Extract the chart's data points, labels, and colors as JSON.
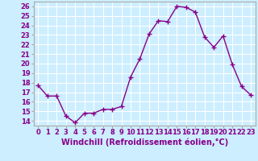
{
  "x": [
    0,
    1,
    2,
    3,
    4,
    5,
    6,
    7,
    8,
    9,
    10,
    11,
    12,
    13,
    14,
    15,
    16,
    17,
    18,
    19,
    20,
    21,
    22,
    23
  ],
  "y": [
    17.7,
    16.6,
    16.6,
    14.5,
    13.8,
    14.8,
    14.8,
    15.2,
    15.2,
    15.5,
    18.6,
    20.5,
    23.1,
    24.5,
    24.4,
    26.0,
    25.9,
    25.4,
    22.8,
    21.7,
    22.9,
    19.9,
    17.6,
    16.7
  ],
  "line_color": "#880088",
  "marker": "+",
  "marker_size": 4,
  "marker_color": "#880088",
  "xlabel": "Windchill (Refroidissement éolien,°C)",
  "xlabel_fontsize": 7,
  "ylim": [
    13.5,
    26.5
  ],
  "xlim": [
    -0.5,
    23.5
  ],
  "yticks": [
    14,
    15,
    16,
    17,
    18,
    19,
    20,
    21,
    22,
    23,
    24,
    25,
    26
  ],
  "xticks": [
    0,
    1,
    2,
    3,
    4,
    5,
    6,
    7,
    8,
    9,
    10,
    11,
    12,
    13,
    14,
    15,
    16,
    17,
    18,
    19,
    20,
    21,
    22,
    23
  ],
  "background_color": "#cceeff",
  "grid_color": "#ffffff",
  "tick_fontsize": 6,
  "line_width": 1.0,
  "spine_color": "#aaaaaa"
}
